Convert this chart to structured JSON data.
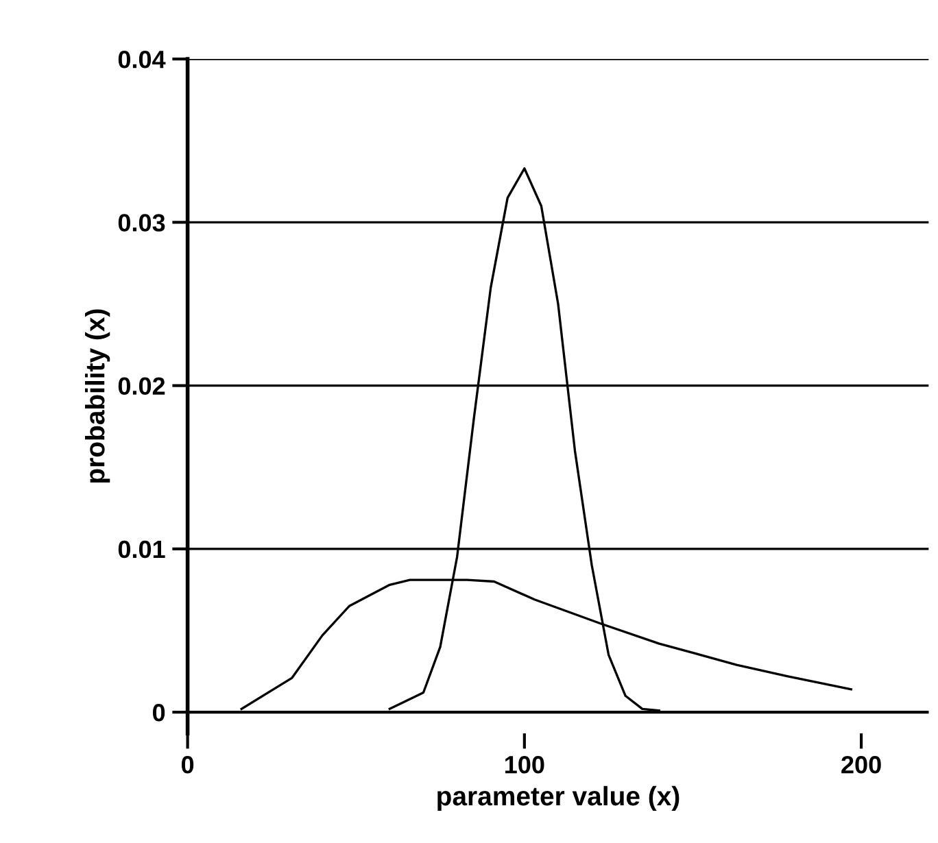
{
  "chart_data": {
    "type": "line",
    "xlabel": "parameter value (x)",
    "ylabel": "probability (x)",
    "xlim": [
      0,
      220
    ],
    "xticks": [
      0,
      100,
      200
    ],
    "ylim": [
      -0.0013,
      0.04
    ],
    "yticks": [
      0,
      0.01,
      0.02,
      0.03,
      0.04
    ],
    "grid": "y",
    "legend": false,
    "marker": "none",
    "line_style": "solid",
    "series": [
      {
        "color": "#000000",
        "x": [
          16,
          31,
          40,
          48,
          60,
          66,
          83,
          91,
          103,
          123,
          140,
          163,
          178,
          197
        ],
        "values": [
          0.0002,
          0.0021,
          0.0047,
          0.0065,
          0.0078,
          0.0081,
          0.0081,
          0.008,
          0.0069,
          0.0054,
          0.0042,
          0.0029,
          0.0022,
          0.0014
        ]
      },
      {
        "color": "#000000",
        "x": [
          60,
          70,
          75,
          80,
          85,
          90,
          95,
          100,
          105,
          110,
          115,
          120,
          125,
          130,
          135,
          140
        ],
        "values": [
          0.0002,
          0.0012,
          0.004,
          0.0095,
          0.018,
          0.026,
          0.0315,
          0.0333,
          0.031,
          0.025,
          0.016,
          0.009,
          0.0035,
          0.001,
          0.0002,
          0.0001
        ]
      }
    ]
  }
}
